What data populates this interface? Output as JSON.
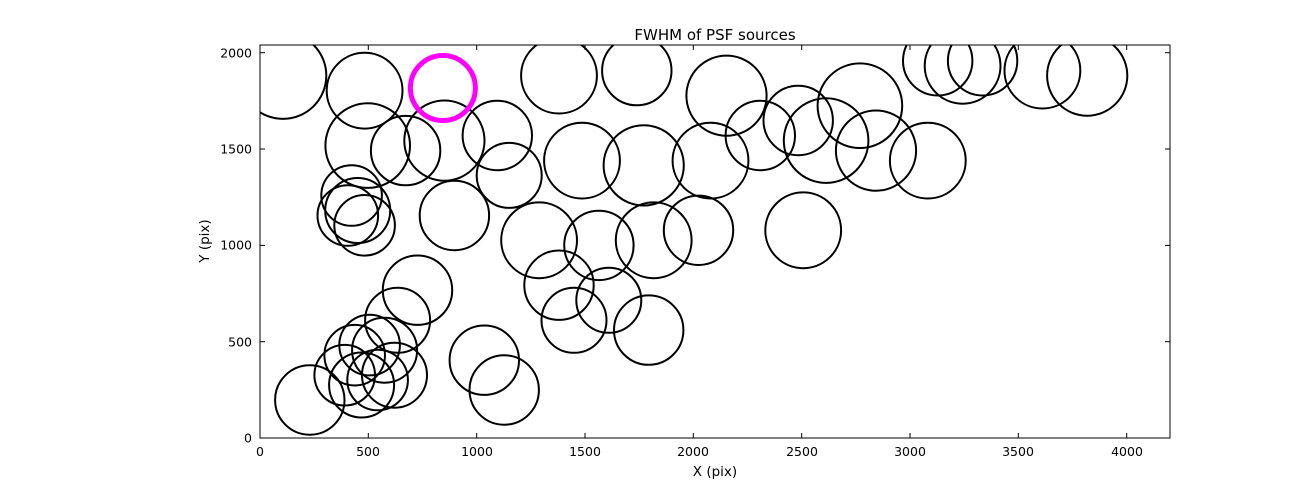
{
  "figure": {
    "title": "FWHM of PSF sources",
    "xlabel": "X (pix)",
    "ylabel": "Y (pix)"
  },
  "chart_data": {
    "type": "scatter",
    "title": "FWHM of PSF sources",
    "xlabel": "X (pix)",
    "ylabel": "Y (pix)",
    "xlim": [
      0,
      4200
    ],
    "ylim": [
      0,
      2040
    ],
    "xticks": [
      0,
      500,
      1000,
      1500,
      2000,
      2500,
      3000,
      3500,
      4000
    ],
    "yticks": [
      0,
      500,
      1000,
      1500,
      2000
    ],
    "grid": false,
    "legend": false,
    "marker": "open-circle",
    "series": [
      {
        "name": "psf-sources",
        "color": "#000000",
        "linewidth": 2,
        "points": [
          [
            106,
            1881,
            200
          ],
          [
            483,
            1803,
            175
          ],
          [
            1380,
            1881,
            175
          ],
          [
            1739,
            1907,
            160
          ],
          [
            2153,
            1777,
            185
          ],
          [
            2484,
            1648,
            160
          ],
          [
            2769,
            1725,
            195
          ],
          [
            3128,
            1958,
            160
          ],
          [
            3243,
            1932,
            175
          ],
          [
            3335,
            1958,
            160
          ],
          [
            3611,
            1907,
            175
          ],
          [
            3818,
            1881,
            185
          ],
          [
            497,
            1518,
            195
          ],
          [
            672,
            1492,
            160
          ],
          [
            851,
            1544,
            185
          ],
          [
            1095,
            1570,
            160
          ],
          [
            1150,
            1363,
            150
          ],
          [
            1486,
            1440,
            175
          ],
          [
            1771,
            1415,
            185
          ],
          [
            2079,
            1440,
            175
          ],
          [
            2309,
            1570,
            160
          ],
          [
            2613,
            1544,
            195
          ],
          [
            2843,
            1492,
            185
          ],
          [
            3082,
            1440,
            175
          ],
          [
            423,
            1259,
            140
          ],
          [
            451,
            1181,
            150
          ],
          [
            405,
            1155,
            140
          ],
          [
            483,
            1104,
            140
          ],
          [
            897,
            1155,
            160
          ],
          [
            1288,
            1026,
            175
          ],
          [
            1564,
            1000,
            160
          ],
          [
            1817,
            1026,
            175
          ],
          [
            2024,
            1078,
            160
          ],
          [
            2507,
            1078,
            175
          ],
          [
            1380,
            793,
            160
          ],
          [
            1610,
            715,
            150
          ],
          [
            1794,
            560,
            160
          ],
          [
            727,
            767,
            160
          ],
          [
            635,
            611,
            150
          ],
          [
            1449,
            611,
            150
          ],
          [
            437,
            430,
            140
          ],
          [
            506,
            482,
            140
          ],
          [
            575,
            456,
            150
          ],
          [
            391,
            326,
            140
          ],
          [
            469,
            275,
            150
          ],
          [
            543,
            301,
            140
          ],
          [
            621,
            326,
            150
          ],
          [
            230,
            197,
            160
          ],
          [
            1035,
            404,
            160
          ],
          [
            1127,
            249,
            160
          ]
        ]
      },
      {
        "name": "highlighted-source",
        "color": "#ff00ff",
        "linewidth": 5,
        "points": [
          [
            844,
            1817,
            150
          ]
        ]
      }
    ]
  }
}
